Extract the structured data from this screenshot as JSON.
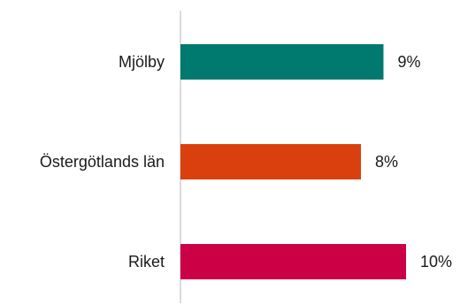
{
  "chart_data": {
    "type": "bar",
    "orientation": "horizontal",
    "title": "",
    "xlabel": "",
    "ylabel": "",
    "categories": [
      "Mjölby",
      "Östergötlands län",
      "Riket"
    ],
    "values": [
      9,
      8,
      10
    ],
    "data_labels": [
      "9%",
      "8%",
      "10%"
    ],
    "colors": [
      "#007A6E",
      "#D9400E",
      "#CC0044"
    ],
    "xlim": [
      0,
      12
    ],
    "grid": false,
    "legend": "none"
  }
}
